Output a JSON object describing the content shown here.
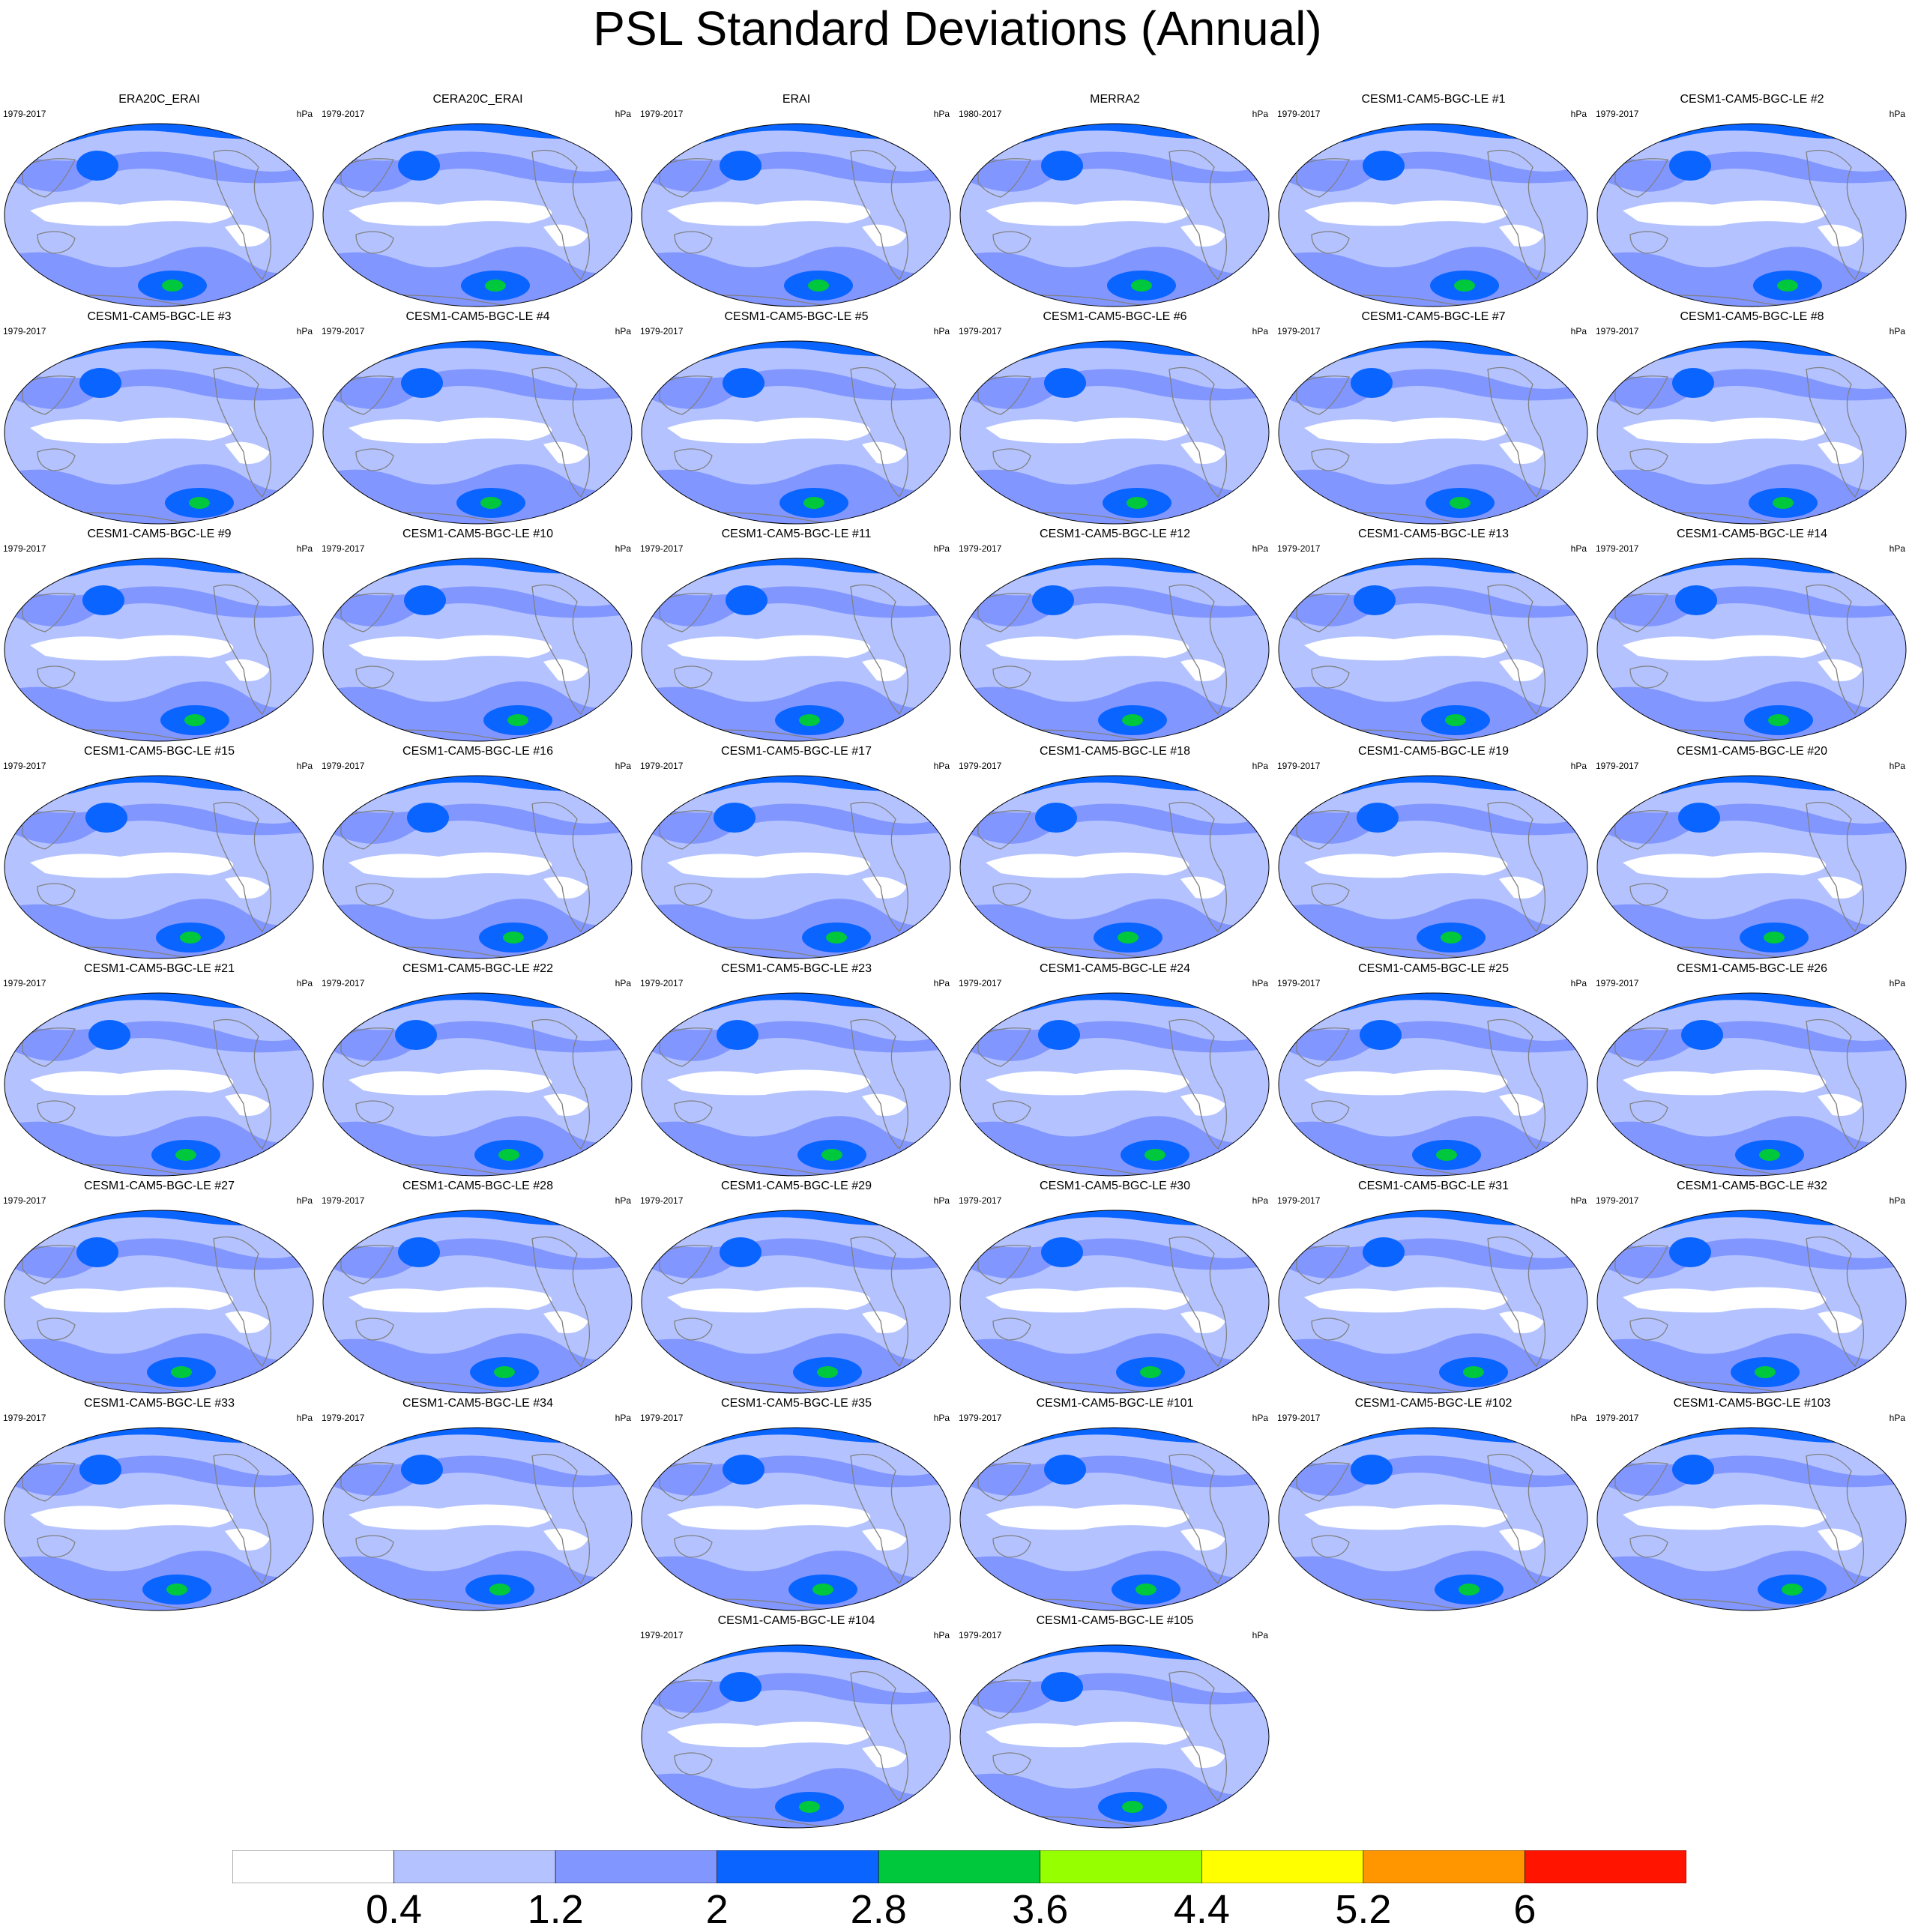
{
  "title": "PSL Standard Deviations (Annual)",
  "units": "hPa",
  "panels": [
    {
      "name": "ERA20C_ERAI",
      "years": "1979-2017"
    },
    {
      "name": "CERA20C_ERAI",
      "years": "1979-2017"
    },
    {
      "name": "ERAI",
      "years": "1979-2017"
    },
    {
      "name": "MERRA2",
      "years": "1980-2017"
    },
    {
      "name": "CESM1-CAM5-BGC-LE #1",
      "years": "1979-2017"
    },
    {
      "name": "CESM1-CAM5-BGC-LE #2",
      "years": "1979-2017"
    },
    {
      "name": "CESM1-CAM5-BGC-LE #3",
      "years": "1979-2017"
    },
    {
      "name": "CESM1-CAM5-BGC-LE #4",
      "years": "1979-2017"
    },
    {
      "name": "CESM1-CAM5-BGC-LE #5",
      "years": "1979-2017"
    },
    {
      "name": "CESM1-CAM5-BGC-LE #6",
      "years": "1979-2017"
    },
    {
      "name": "CESM1-CAM5-BGC-LE #7",
      "years": "1979-2017"
    },
    {
      "name": "CESM1-CAM5-BGC-LE #8",
      "years": "1979-2017"
    },
    {
      "name": "CESM1-CAM5-BGC-LE #9",
      "years": "1979-2017"
    },
    {
      "name": "CESM1-CAM5-BGC-LE #10",
      "years": "1979-2017"
    },
    {
      "name": "CESM1-CAM5-BGC-LE #11",
      "years": "1979-2017"
    },
    {
      "name": "CESM1-CAM5-BGC-LE #12",
      "years": "1979-2017"
    },
    {
      "name": "CESM1-CAM5-BGC-LE #13",
      "years": "1979-2017"
    },
    {
      "name": "CESM1-CAM5-BGC-LE #14",
      "years": "1979-2017"
    },
    {
      "name": "CESM1-CAM5-BGC-LE #15",
      "years": "1979-2017"
    },
    {
      "name": "CESM1-CAM5-BGC-LE #16",
      "years": "1979-2017"
    },
    {
      "name": "CESM1-CAM5-BGC-LE #17",
      "years": "1979-2017"
    },
    {
      "name": "CESM1-CAM5-BGC-LE #18",
      "years": "1979-2017"
    },
    {
      "name": "CESM1-CAM5-BGC-LE #19",
      "years": "1979-2017"
    },
    {
      "name": "CESM1-CAM5-BGC-LE #20",
      "years": "1979-2017"
    },
    {
      "name": "CESM1-CAM5-BGC-LE #21",
      "years": "1979-2017"
    },
    {
      "name": "CESM1-CAM5-BGC-LE #22",
      "years": "1979-2017"
    },
    {
      "name": "CESM1-CAM5-BGC-LE #23",
      "years": "1979-2017"
    },
    {
      "name": "CESM1-CAM5-BGC-LE #24",
      "years": "1979-2017"
    },
    {
      "name": "CESM1-CAM5-BGC-LE #25",
      "years": "1979-2017"
    },
    {
      "name": "CESM1-CAM5-BGC-LE #26",
      "years": "1979-2017"
    },
    {
      "name": "CESM1-CAM5-BGC-LE #27",
      "years": "1979-2017"
    },
    {
      "name": "CESM1-CAM5-BGC-LE #28",
      "years": "1979-2017"
    },
    {
      "name": "CESM1-CAM5-BGC-LE #29",
      "years": "1979-2017"
    },
    {
      "name": "CESM1-CAM5-BGC-LE #30",
      "years": "1979-2017"
    },
    {
      "name": "CESM1-CAM5-BGC-LE #31",
      "years": "1979-2017"
    },
    {
      "name": "CESM1-CAM5-BGC-LE #32",
      "years": "1979-2017"
    },
    {
      "name": "CESM1-CAM5-BGC-LE #33",
      "years": "1979-2017"
    },
    {
      "name": "CESM1-CAM5-BGC-LE #34",
      "years": "1979-2017"
    },
    {
      "name": "CESM1-CAM5-BGC-LE #35",
      "years": "1979-2017"
    },
    {
      "name": "CESM1-CAM5-BGC-LE #101",
      "years": "1979-2017"
    },
    {
      "name": "CESM1-CAM5-BGC-LE #102",
      "years": "1979-2017"
    },
    {
      "name": "CESM1-CAM5-BGC-LE #103",
      "years": "1979-2017"
    },
    {
      "name": "CESM1-CAM5-BGC-LE #104",
      "years": "1979-2017"
    },
    {
      "name": "CESM1-CAM5-BGC-LE #105",
      "years": "1979-2017"
    }
  ],
  "colorbar": {
    "labels": [
      "0.4",
      "1.2",
      "2",
      "2.8",
      "3.6",
      "4.4",
      "5.2",
      "6"
    ],
    "colors": [
      "#ffffff",
      "#b4c3ff",
      "#8296ff",
      "#0a64ff",
      "#00c83c",
      "#96ff00",
      "#ffff00",
      "#ff9600",
      "#ff1400"
    ]
  },
  "colors": {
    "land_outline": "#808080",
    "map_border": "#000000"
  }
}
